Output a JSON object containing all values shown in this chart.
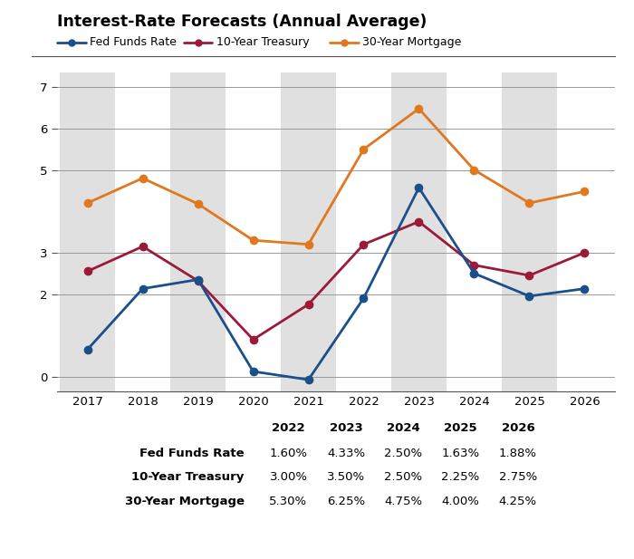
{
  "title": "Interest-Rate Forecasts (Annual Average)",
  "years": [
    2017,
    2018,
    2019,
    2020,
    2021,
    2022,
    2023,
    2024,
    2025,
    2026
  ],
  "fed_funds": [
    0.66,
    2.13,
    2.35,
    0.13,
    -0.07,
    1.9,
    4.57,
    2.5,
    1.95,
    2.13
  ],
  "treasury_10yr": [
    2.55,
    3.15,
    2.32,
    0.9,
    1.75,
    3.2,
    3.75,
    2.7,
    2.45,
    3.0
  ],
  "mortgage_30yr": [
    4.2,
    4.8,
    4.18,
    3.3,
    3.2,
    5.5,
    6.48,
    5.0,
    4.2,
    4.48
  ],
  "fed_color": "#1a4f8a",
  "treasury_color": "#9b1a3a",
  "mortgage_color": "#e07820",
  "shaded_years": [
    2017,
    2019,
    2021,
    2023,
    2025
  ],
  "shade_color": "#e0e0e0",
  "ylim": [
    -0.35,
    7.35
  ],
  "yticks": [
    0,
    2,
    3,
    5,
    6,
    7
  ],
  "ytick_labels": [
    "0",
    "2",
    "3",
    "5",
    "6",
    "7"
  ],
  "table_years": [
    "2022",
    "2023",
    "2024",
    "2025",
    "2026"
  ],
  "table_rows": [
    [
      "Fed Funds Rate",
      "1.60%",
      "4.33%",
      "2.50%",
      "1.63%",
      "1.88%"
    ],
    [
      "10-Year Treasury",
      "3.00%",
      "3.50%",
      "2.50%",
      "2.25%",
      "2.75%"
    ],
    [
      "30-Year Mortgage",
      "5.30%",
      "6.25%",
      "4.75%",
      "4.00%",
      "4.25%"
    ]
  ],
  "legend_labels": [
    "Fed Funds Rate",
    "10-Year Treasury",
    "30-Year Mortgage"
  ],
  "bg": "#ffffff"
}
